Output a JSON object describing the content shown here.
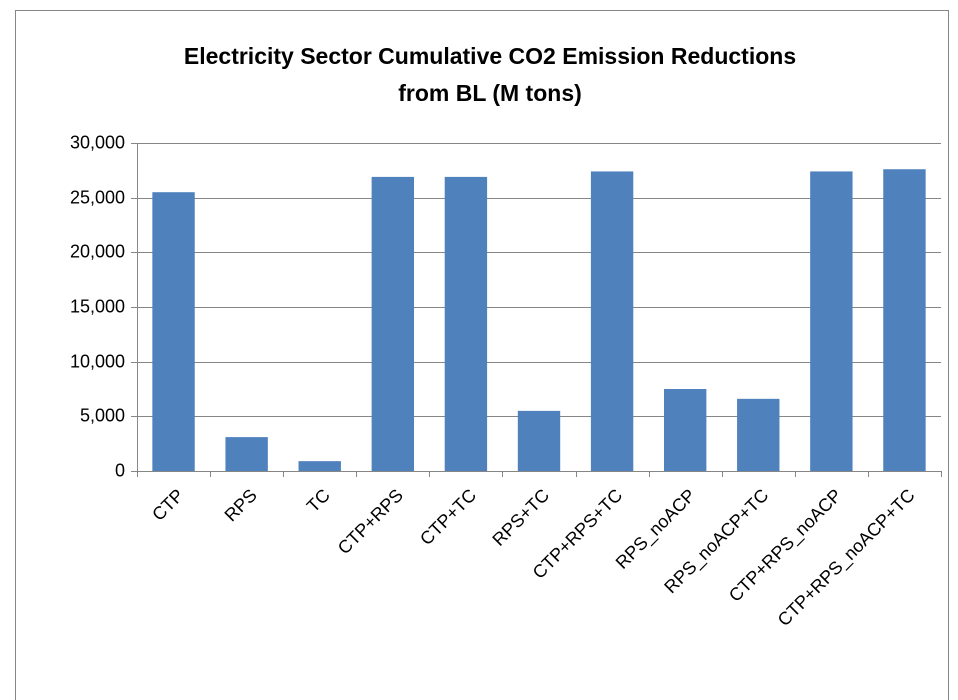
{
  "chart_data": {
    "type": "bar",
    "title": [
      "Electricity Sector Cumulative CO2 Emission Reductions",
      "from BL (M tons)"
    ],
    "categories": [
      "CTP",
      "RPS",
      "TC",
      "CTP+RPS",
      "CTP+TC",
      "RPS+TC",
      "CTP+RPS+TC",
      "RPS_noACP",
      "RPS_noACP+TC",
      "CTP+RPS_noACP",
      "CTP+RPS_noACP+TC"
    ],
    "values": [
      25500,
      3100,
      900,
      26900,
      26900,
      5500,
      27400,
      7500,
      6600,
      27400,
      27600
    ],
    "color": "#4f81bd",
    "ylim": [
      0,
      30000
    ],
    "yticks": [
      0,
      {
        "value": 5000,
        "label": "5,000"
      },
      {
        "value": 10000,
        "label": "10,000"
      },
      {
        "value": 15000,
        "label": "15,000"
      },
      {
        "value": 20000,
        "label": "20,000"
      },
      {
        "value": 25000,
        "label": "25,000"
      },
      {
        "value": 30000,
        "label": "30,000"
      }
    ],
    "grid": true
  }
}
